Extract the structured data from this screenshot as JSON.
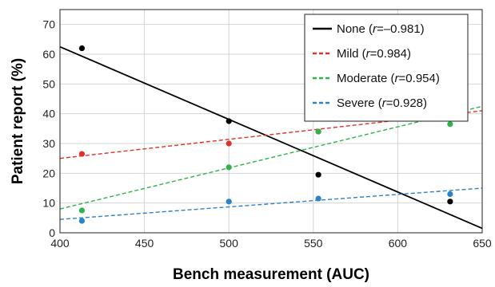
{
  "chart_data": {
    "type": "scatter",
    "xlabel": "Bench measurement (AUC)",
    "ylabel": "Patient report (%)",
    "xlim": [
      400,
      650
    ],
    "ylim": [
      0,
      75
    ],
    "xticks": [
      "400",
      "450",
      "500",
      "550",
      "600",
      "650"
    ],
    "yticks": [
      "0",
      "10",
      "20",
      "30",
      "40",
      "50",
      "60",
      "70"
    ],
    "grid": true,
    "legend_position": "top-right",
    "series": [
      {
        "name": "None",
        "legend_prefix": "None (",
        "legend_r": "r",
        "legend_suffix": "=–0.981)",
        "color": "#000000",
        "line_style": "solid",
        "marker": "circle",
        "points": [
          [
            413,
            62
          ],
          [
            500,
            37.5
          ],
          [
            553,
            19.5
          ],
          [
            631,
            10.5
          ]
        ],
        "fit": [
          [
            400,
            62.5
          ],
          [
            650,
            1.5
          ]
        ]
      },
      {
        "name": "Mild",
        "legend_prefix": "Mild (",
        "legend_r": "r",
        "legend_suffix": "=0.984)",
        "color": "#e0302a",
        "line_style": "dashed",
        "marker": "circle",
        "points": [
          [
            413,
            26.5
          ],
          [
            500,
            30
          ],
          [
            553,
            34
          ],
          [
            631,
            40.5
          ]
        ],
        "fit": [
          [
            400,
            25
          ],
          [
            650,
            41
          ]
        ]
      },
      {
        "name": "Moderate",
        "legend_prefix": "Moderate (",
        "legend_r": "r",
        "legend_suffix": "=0.954)",
        "color": "#2db34a",
        "line_style": "dashed",
        "marker": "circle",
        "points": [
          [
            413,
            7.5
          ],
          [
            500,
            22
          ],
          [
            553,
            34
          ],
          [
            631,
            36.5
          ]
        ],
        "fit": [
          [
            400,
            8
          ],
          [
            650,
            42.5
          ]
        ]
      },
      {
        "name": "Severe",
        "legend_prefix": "Severe (",
        "legend_r": "r",
        "legend_suffix": "=0.928)",
        "color": "#2a82c9",
        "line_style": "dashed",
        "marker": "circle",
        "points": [
          [
            413,
            4
          ],
          [
            500,
            10.5
          ],
          [
            553,
            11.5
          ],
          [
            631,
            13
          ]
        ],
        "fit": [
          [
            400,
            4.5
          ],
          [
            650,
            15
          ]
        ]
      }
    ]
  }
}
